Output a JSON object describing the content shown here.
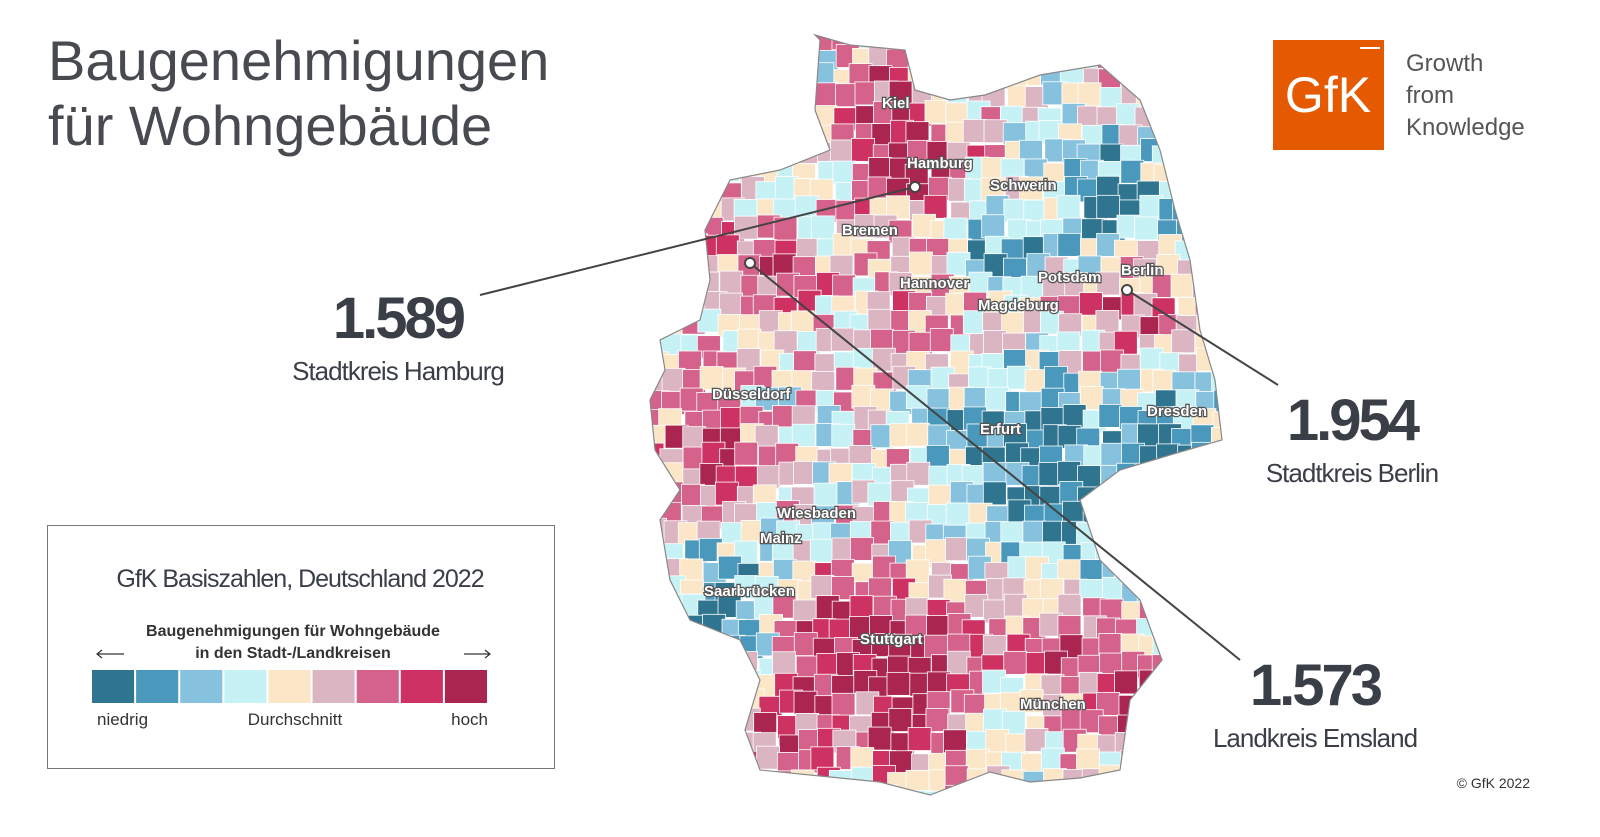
{
  "title": [
    "Baugenehmigungen",
    "für Wohngebäude"
  ],
  "logo": {
    "mark": "GfK",
    "tagline": [
      "Growth",
      "from",
      "Knowledge"
    ]
  },
  "cities": [
    "Kiel",
    "Hamburg",
    "Schwerin",
    "Bremen",
    "Hannover",
    "Potsdam",
    "Berlin",
    "Magdeburg",
    "Düsseldorf",
    "Dresden",
    "Erfurt",
    "Wiesbaden",
    "Mainz",
    "Saarbrücken",
    "Stuttgart",
    "München"
  ],
  "callouts": [
    {
      "value": "1.589",
      "label": "Stadtkreis Hamburg"
    },
    {
      "value": "1.954",
      "label": "Stadtkreis Berlin"
    },
    {
      "value": "1.573",
      "label": "Landkreis Emsland"
    }
  ],
  "legend": {
    "title": "GfK Basiszahlen, Deutschland 2022",
    "subtitle": [
      "Baugenehmigungen für Wohngebäude",
      "in den Stadt-/Landkreisen"
    ],
    "colors": [
      "#2f7590",
      "#4a98bb",
      "#86c2de",
      "#c7f2f5",
      "#fbe7c8",
      "#dcb5c3",
      "#d4628a",
      "#ce3262",
      "#aa2550"
    ],
    "labels": [
      "niedrig",
      "Durchschnitt",
      "hoch"
    ]
  },
  "copyright": "© GfK 2022"
}
